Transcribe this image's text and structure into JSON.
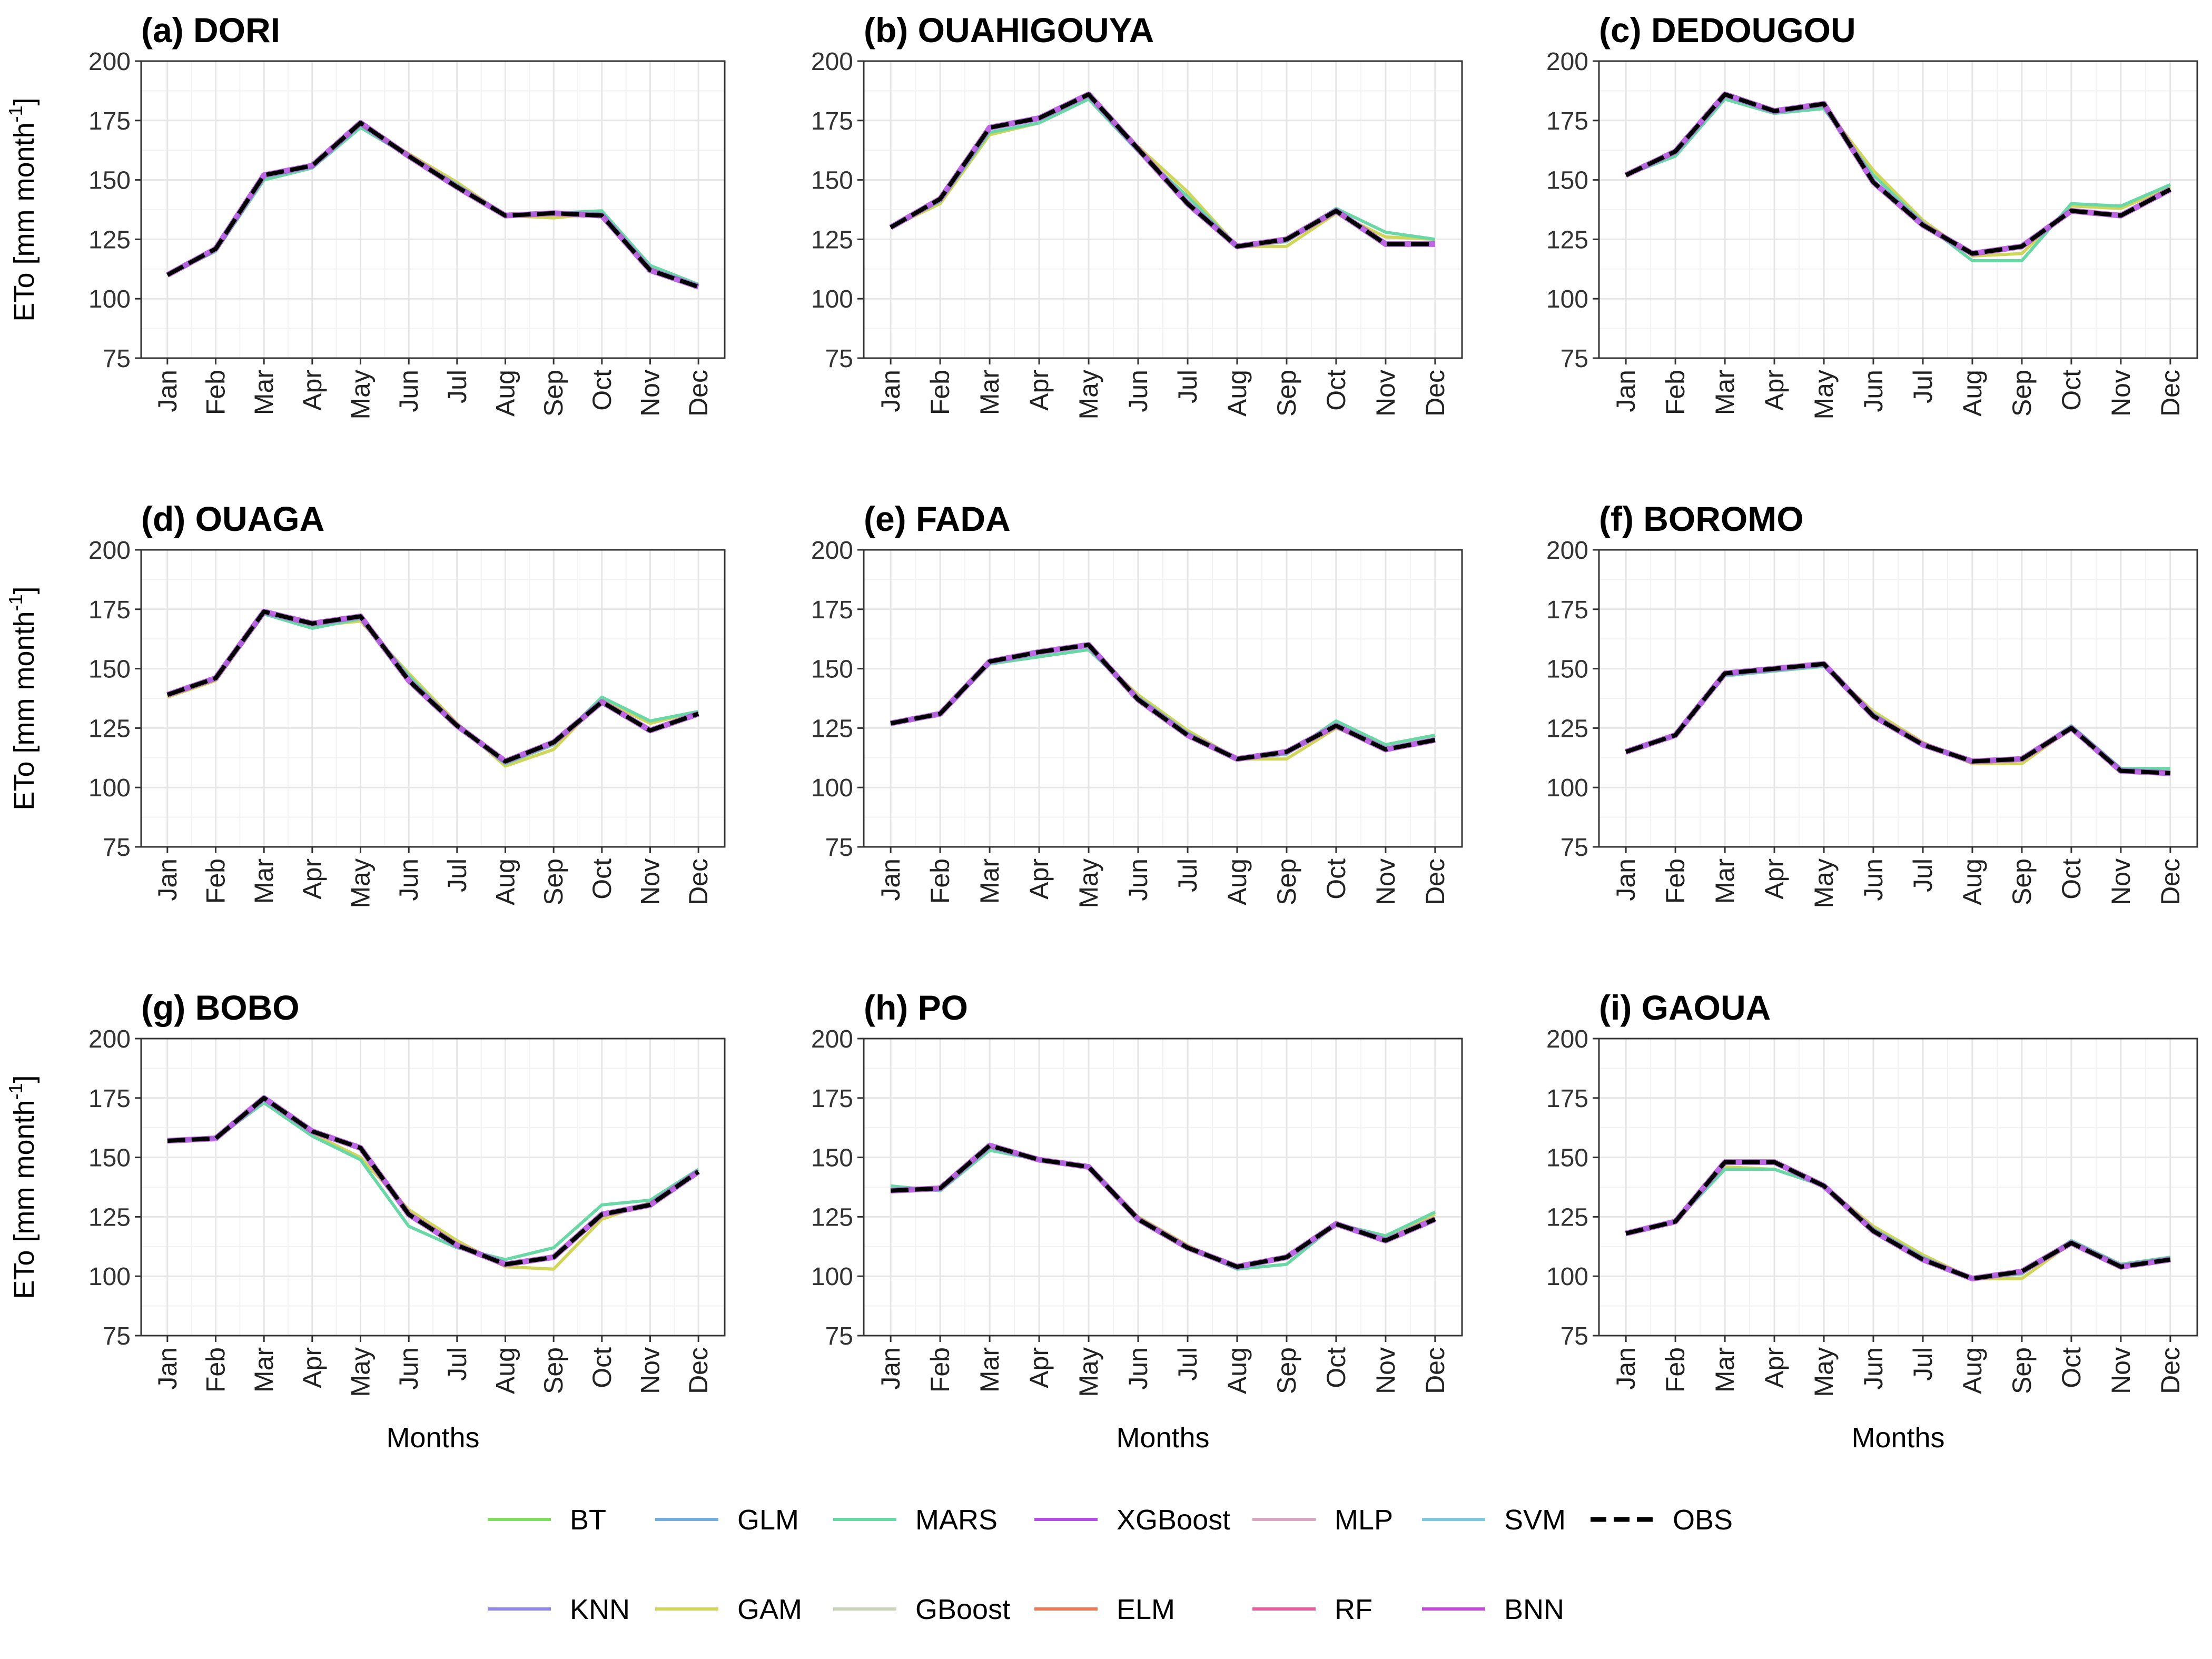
{
  "chart_data": {
    "type": "line",
    "months": [
      "Jan",
      "Feb",
      "Mar",
      "Apr",
      "May",
      "Jun",
      "Jul",
      "Aug",
      "Sep",
      "Oct",
      "Nov",
      "Dec"
    ],
    "xlabel": "Months",
    "ylabel": "ETo [mm month",
    "ylabel_sup": "-1",
    "ylabel_end": "]",
    "ylim": [
      75,
      200
    ],
    "yticks": [
      75,
      100,
      125,
      150,
      175,
      200
    ],
    "grid": true,
    "legend_position": "bottom",
    "colors": {
      "BT": "#7fdc5f",
      "GLM": "#72aed8",
      "MARS": "#6ad7a6",
      "XGBoost": "#b44ee0",
      "MLP": "#d8a8c2",
      "SVM": "#7ec7dd",
      "OBS": "#000000",
      "KNN": "#8f88e6",
      "GAM": "#cfd65a",
      "GBoost": "#c9d3b8",
      "ELM": "#e87a58",
      "RF": "#e45f9c",
      "BNN": "#c34ad7"
    },
    "legend": {
      "row1": [
        "BT",
        "GLM",
        "MARS",
        "XGBoost",
        "MLP",
        "SVM",
        "OBS"
      ],
      "row2": [
        "KNN",
        "GAM",
        "GBoost",
        "ELM",
        "RF",
        "BNN"
      ]
    },
    "panels": [
      {
        "title": "(a) DORI",
        "obs": [
          110,
          121,
          152,
          156,
          174,
          160,
          147,
          135,
          136,
          135,
          112,
          105
        ],
        "gam": [
          110,
          120,
          150,
          155,
          173,
          161,
          149,
          135,
          134,
          136,
          113,
          106
        ],
        "mars": [
          110,
          120,
          150,
          155,
          172,
          160,
          148,
          135,
          136,
          137,
          114,
          106
        ]
      },
      {
        "title": "(b) OUAHIGOUYA",
        "obs": [
          130,
          142,
          172,
          176,
          186,
          163,
          140,
          122,
          125,
          137,
          123,
          123
        ],
        "gam": [
          130,
          140,
          169,
          174,
          185,
          164,
          145,
          122,
          122,
          136,
          126,
          125
        ],
        "mars": [
          130,
          141,
          170,
          174,
          184,
          162,
          143,
          122,
          124,
          138,
          128,
          125
        ]
      },
      {
        "title": "(c) DEDOUGOU",
        "obs": [
          152,
          162,
          186,
          179,
          182,
          149,
          131,
          119,
          122,
          137,
          135,
          146
        ],
        "gam": [
          152,
          161,
          184,
          178,
          181,
          154,
          133,
          118,
          119,
          139,
          138,
          147
        ],
        "mars": [
          152,
          160,
          184,
          178,
          180,
          152,
          132,
          116,
          116,
          140,
          139,
          148
        ]
      },
      {
        "title": "(d) OUAGA",
        "obs": [
          139,
          146,
          174,
          169,
          172,
          145,
          126,
          111,
          119,
          136,
          124,
          131
        ],
        "gam": [
          138,
          145,
          173,
          168,
          170,
          148,
          127,
          109,
          116,
          137,
          127,
          132
        ],
        "mars": [
          139,
          146,
          173,
          167,
          171,
          147,
          126,
          110,
          118,
          138,
          128,
          132
        ]
      },
      {
        "title": "(e) FADA",
        "obs": [
          127,
          131,
          153,
          157,
          160,
          137,
          122,
          112,
          115,
          126,
          116,
          120
        ],
        "gam": [
          127,
          131,
          152,
          155,
          158,
          139,
          124,
          112,
          112,
          125,
          118,
          122
        ],
        "mars": [
          127,
          131,
          152,
          155,
          158,
          138,
          123,
          112,
          114,
          128,
          118,
          122
        ]
      },
      {
        "title": "(f) BOROMO",
        "obs": [
          115,
          122,
          148,
          150,
          152,
          130,
          118,
          111,
          112,
          125,
          107,
          106
        ],
        "gam": [
          115,
          122,
          147,
          149,
          151,
          132,
          119,
          110,
          110,
          125,
          108,
          107
        ],
        "mars": [
          115,
          122,
          147,
          149,
          151,
          131,
          118,
          111,
          112,
          126,
          108,
          108
        ]
      },
      {
        "title": "(g) BOBO",
        "obs": [
          157,
          158,
          175,
          161,
          154,
          126,
          113,
          105,
          108,
          126,
          130,
          144
        ],
        "gam": [
          157,
          158,
          173,
          160,
          150,
          128,
          115,
          104,
          103,
          124,
          131,
          145
        ],
        "mars": [
          157,
          158,
          173,
          159,
          149,
          121,
          112,
          107,
          112,
          130,
          132,
          145
        ]
      },
      {
        "title": "(h) PO",
        "obs": [
          136,
          137,
          155,
          149,
          146,
          124,
          112,
          104,
          108,
          122,
          115,
          124
        ],
        "gam": [
          137,
          137,
          154,
          149,
          146,
          125,
          113,
          103,
          105,
          122,
          117,
          126
        ],
        "mars": [
          138,
          136,
          153,
          149,
          146,
          124,
          112,
          103,
          105,
          122,
          117,
          127
        ]
      },
      {
        "title": "(i) GAOUA",
        "obs": [
          118,
          123,
          148,
          148,
          138,
          119,
          107,
          99,
          102,
          114,
          104,
          107
        ],
        "gam": [
          118,
          123,
          146,
          145,
          138,
          121,
          109,
          99,
          99,
          114,
          105,
          108
        ],
        "mars": [
          118,
          123,
          145,
          145,
          138,
          120,
          108,
          99,
          101,
          115,
          105,
          108
        ]
      }
    ]
  }
}
